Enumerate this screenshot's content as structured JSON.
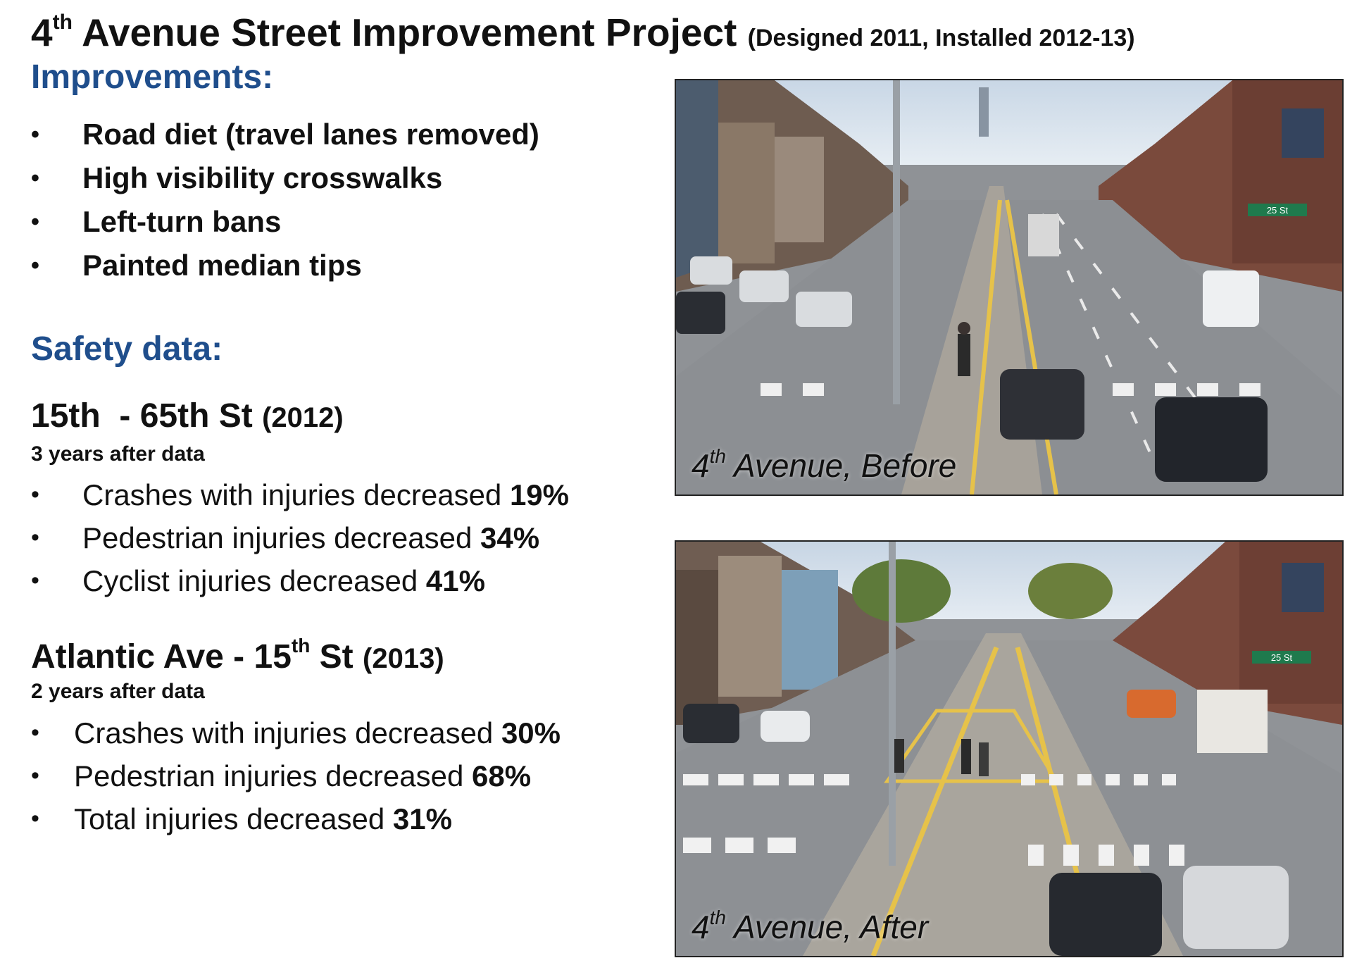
{
  "title": {
    "ordinal": "4",
    "ordinal_suffix": "th",
    "main": "Avenue Street Improvement Project",
    "subtitle": "(Designed 2011, Installed 2012-13)"
  },
  "improvements": {
    "heading": "Improvements:",
    "items": [
      "Road diet (travel lanes removed)",
      "High visibility crosswalks",
      "Left-turn bans",
      "Painted median tips"
    ]
  },
  "safety": {
    "heading": "Safety data:",
    "segments": [
      {
        "range": "15th  - 65th St",
        "year": "(2012)",
        "note": "3 years after data",
        "stats": [
          {
            "text": "Crashes with injuries decreased ",
            "value": "19%"
          },
          {
            "text": "Pedestrian injuries decreased ",
            "value": "34%"
          },
          {
            "text": "Cyclist injuries decreased ",
            "value": "41%"
          }
        ]
      },
      {
        "range_start": "Atlantic Ave - 15",
        "range_suffix": "th",
        "range_end": " St",
        "year": "(2013)",
        "note": "2 years after data",
        "stats": [
          {
            "text": "Crashes with injuries decreased ",
            "value": "30%"
          },
          {
            "text": "Pedestrian injuries decreased ",
            "value": "68%"
          },
          {
            "text": "Total injuries decreased ",
            "value": "31%"
          }
        ]
      }
    ]
  },
  "photos": {
    "before": {
      "ordinal": "4",
      "suffix": "th",
      "caption": " Avenue, Before",
      "sign": "25 St"
    },
    "after": {
      "ordinal": "4",
      "suffix": "th",
      "caption": " Avenue, After",
      "sign": "25 St"
    }
  },
  "colors": {
    "heading_blue": "#1f4e8c"
  },
  "bullet_glyph": "•"
}
